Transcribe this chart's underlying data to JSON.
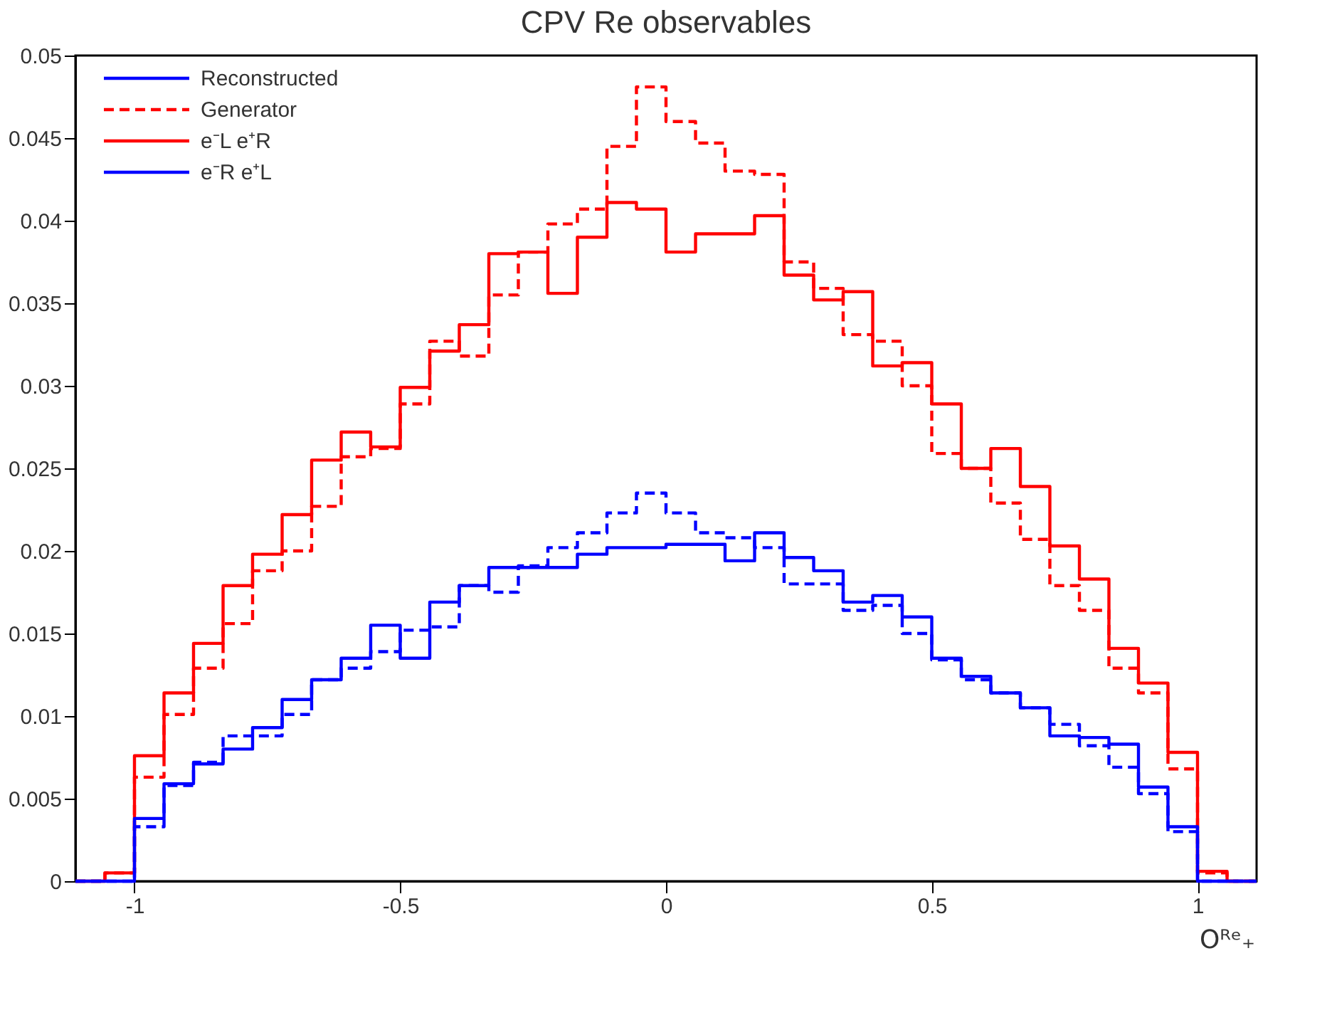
{
  "chart_data": {
    "type": "step",
    "title": "CPV Re observables",
    "xlabel": "Oᴿᵉ₊",
    "x": [
      -1.1111,
      -1.0556,
      -1,
      -0.9444,
      -0.8889,
      -0.8333,
      -0.7778,
      -0.7222,
      -0.6667,
      -0.6111,
      -0.5556,
      -0.5,
      -0.4444,
      -0.3889,
      -0.3333,
      -0.2778,
      -0.2222,
      -0.1667,
      -0.1111,
      -0.0556,
      0,
      0.0556,
      0.1111,
      0.1667,
      0.2222,
      0.2778,
      0.3333,
      0.3889,
      0.4444,
      0.5,
      0.5556,
      0.6111,
      0.6667,
      0.7222,
      0.7778,
      0.8333,
      0.8889,
      0.9444,
      1,
      1.0556,
      1.1111
    ],
    "series": [
      {
        "name": "e⁻L e⁺R",
        "color": "#ff0000",
        "line_style": "solid",
        "values": [
          0,
          0.0005,
          0.0076,
          0.0114,
          0.0144,
          0.0179,
          0.0198,
          0.0222,
          0.0255,
          0.0272,
          0.0263,
          0.0299,
          0.0321,
          0.0337,
          0.038,
          0.0381,
          0.0356,
          0.039,
          0.0411,
          0.0407,
          0.0381,
          0.0392,
          0.0392,
          0.0403,
          0.0367,
          0.0352,
          0.0357,
          0.0312,
          0.0314,
          0.0289,
          0.025,
          0.0262,
          0.0239,
          0.0203,
          0.0183,
          0.0141,
          0.012,
          0.0078,
          0.0006,
          0,
          0
        ]
      },
      {
        "color": "#ff0000",
        "line_style": "dashed",
        "values": [
          0,
          0.0005,
          0.0063,
          0.0101,
          0.0129,
          0.0156,
          0.0188,
          0.02,
          0.0227,
          0.0257,
          0.0262,
          0.0289,
          0.0327,
          0.0318,
          0.0355,
          0.0381,
          0.0398,
          0.0407,
          0.0445,
          0.0481,
          0.046,
          0.0447,
          0.043,
          0.0428,
          0.0375,
          0.0359,
          0.0331,
          0.0327,
          0.03,
          0.0259,
          0.025,
          0.0229,
          0.0207,
          0.0179,
          0.0164,
          0.0129,
          0.0114,
          0.0068,
          0.0005,
          0,
          0
        ]
      },
      {
        "name": "e⁻R e⁺L",
        "color": "#0000ff",
        "line_style": "solid",
        "values": [
          0,
          0,
          0.0038,
          0.0059,
          0.0071,
          0.008,
          0.0093,
          0.011,
          0.0122,
          0.0135,
          0.0155,
          0.0135,
          0.0169,
          0.0179,
          0.019,
          0.019,
          0.019,
          0.0198,
          0.0202,
          0.0202,
          0.0204,
          0.0204,
          0.0194,
          0.0211,
          0.0196,
          0.0188,
          0.0169,
          0.0173,
          0.016,
          0.0135,
          0.0124,
          0.0114,
          0.0105,
          0.0088,
          0.0087,
          0.0083,
          0.0057,
          0.0033,
          0,
          0,
          0
        ]
      },
      {
        "color": "#0000ff",
        "line_style": "dashed",
        "values": [
          0,
          0,
          0.0033,
          0.0058,
          0.0072,
          0.0088,
          0.0088,
          0.0101,
          0.0122,
          0.0129,
          0.0139,
          0.0152,
          0.0154,
          0.0179,
          0.0175,
          0.0191,
          0.0202,
          0.0211,
          0.0223,
          0.0235,
          0.0223,
          0.0211,
          0.0208,
          0.0202,
          0.018,
          0.018,
          0.0164,
          0.0167,
          0.015,
          0.0134,
          0.0122,
          0.0114,
          0.0105,
          0.0095,
          0.0082,
          0.0069,
          0.0053,
          0.003,
          0,
          0,
          0
        ]
      }
    ],
    "annotations": [
      "Reconstructed",
      "Generator"
    ],
    "xlim": [
      -1.1111,
      1.1111
    ],
    "xticks": [
      -1,
      -0.5,
      0,
      0.5,
      1
    ],
    "ylim": [
      0,
      0.05
    ],
    "yticks": [
      0,
      0.005,
      0.01,
      0.015,
      0.02,
      0.025,
      0.03,
      0.035,
      0.04,
      0.045,
      0.05
    ],
    "grid": false,
    "legend": "top left"
  }
}
